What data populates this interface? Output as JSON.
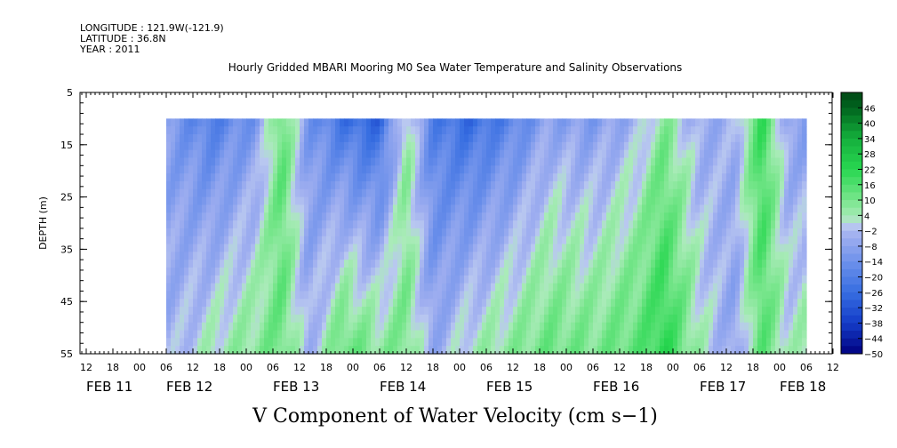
{
  "header": {
    "longitude": "LONGITUDE : 121.9W(-121.9)",
    "latitude": "LATITUDE : 36.8N",
    "year": "YEAR : 2011"
  },
  "chart_data": {
    "type": "heatmap",
    "title": "Hourly Gridded MBARI Mooring M0 Sea Water Temperature and Salinity Observations",
    "xlabel": "V Component of Water Velocity (cm s−1)",
    "ylabel": "DEPTH (m)",
    "y_ticks": [
      5,
      15,
      25,
      35,
      45,
      55
    ],
    "ylim": [
      5,
      55
    ],
    "y_reversed": true,
    "x_hour_ticks": [
      "12",
      "18",
      "00",
      "06",
      "12",
      "18",
      "00",
      "06",
      "12",
      "18",
      "00",
      "06",
      "12",
      "18",
      "00",
      "06",
      "12",
      "18",
      "00",
      "06",
      "12",
      "18",
      "00",
      "06",
      "12",
      "18",
      "00",
      "06",
      "12"
    ],
    "x_date_labels": [
      {
        "label": "FEB 11",
        "tick_index": 0
      },
      {
        "label": "FEB 12",
        "tick_index": 3
      },
      {
        "label": "FEB 13",
        "tick_index": 7
      },
      {
        "label": "FEB 14",
        "tick_index": 11
      },
      {
        "label": "FEB 15",
        "tick_index": 15
      },
      {
        "label": "FEB 16",
        "tick_index": 19
      },
      {
        "label": "FEB 17",
        "tick_index": 23
      },
      {
        "label": "FEB 18",
        "tick_index": 26
      }
    ],
    "data_start_hour": 18,
    "data_end_hour": 162,
    "data_depth_range": [
      10,
      55
    ],
    "colorbar": {
      "levels": [
        46,
        40,
        34,
        28,
        22,
        16,
        10,
        4,
        -2,
        -8,
        -14,
        -20,
        -26,
        -32,
        -38,
        -44,
        -50
      ],
      "vmin": -50,
      "vmax": 52
    },
    "velocity_profile": [
      {
        "t": 18,
        "surf": -10,
        "deep": -4
      },
      {
        "t": 28,
        "surf": -20,
        "deep": 4
      },
      {
        "t": 38,
        "surf": -12,
        "deep": 8
      },
      {
        "t": 44,
        "surf": 14,
        "deep": 12
      },
      {
        "t": 50,
        "surf": -12,
        "deep": -4
      },
      {
        "t": 58,
        "surf": -24,
        "deep": 14
      },
      {
        "t": 66,
        "surf": -28,
        "deep": 8
      },
      {
        "t": 72,
        "surf": 6,
        "deep": 10
      },
      {
        "t": 78,
        "surf": -20,
        "deep": -6
      },
      {
        "t": 86,
        "surf": -26,
        "deep": 4
      },
      {
        "t": 96,
        "surf": -18,
        "deep": 8
      },
      {
        "t": 104,
        "surf": -8,
        "deep": 12
      },
      {
        "t": 114,
        "surf": -10,
        "deep": 10
      },
      {
        "t": 124,
        "surf": -4,
        "deep": 14
      },
      {
        "t": 130,
        "surf": 8,
        "deep": 22
      },
      {
        "t": 138,
        "surf": -6,
        "deep": 4
      },
      {
        "t": 146,
        "surf": -4,
        "deep": -8
      },
      {
        "t": 152,
        "surf": 20,
        "deep": 14
      },
      {
        "t": 158,
        "surf": -8,
        "deep": 2
      },
      {
        "t": 162,
        "surf": -10,
        "deep": 6
      }
    ]
  }
}
